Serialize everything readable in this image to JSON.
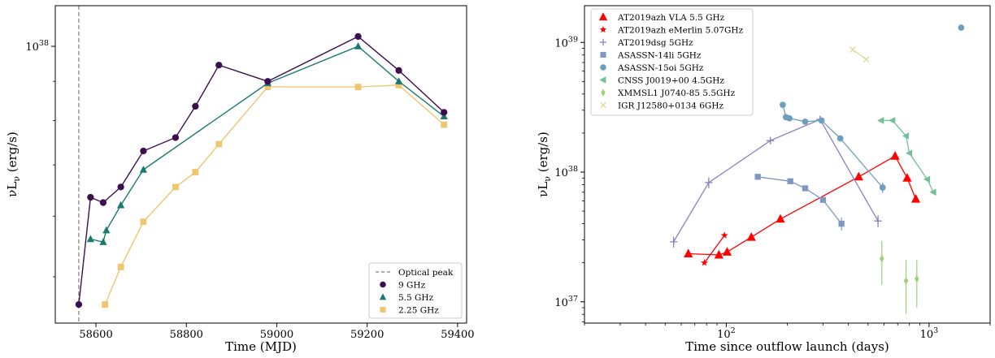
{
  "chart_data": [
    {
      "type": "line",
      "xlabel": "Time (MJD)",
      "ylabel": "νL<sub>ν</sub> (erg/s)",
      "ylabel_main": "νL",
      "ylabel_sub": "ν",
      "ylabel_unit": " (erg/s)",
      "xlim": [
        58510,
        59420
      ],
      "ylim": [
        4.35e+37,
        1.13e+38
      ],
      "yscale": "log",
      "xticks": [
        58600,
        58800,
        59000,
        59200,
        59400
      ],
      "yticks": [
        {
          "value": 1e+38,
          "label": "10",
          "exp": "38"
        }
      ],
      "legend_position": "lower right",
      "vline": {
        "x": 58562,
        "name": "Optical peak",
        "style": "dashed",
        "color": "#7f7f7f"
      },
      "series": [
        {
          "name": "9 GHz",
          "color": "#3b0f4f",
          "marker": "circle",
          "x": [
            58562,
            58588,
            58616,
            58655,
            58705,
            58776,
            58820,
            58872,
            58980,
            59180,
            59270,
            59370
          ],
          "y": [
            4.6e+37,
            6.35e+37,
            6.25e+37,
            6.55e+37,
            7.3e+37,
            7.6e+37,
            8.35e+37,
            9.45e+37,
            9e+37,
            1.03e+38,
            9.3e+37,
            8.2e+37
          ]
        },
        {
          "name": "5.5 GHz",
          "color": "#1b7a6e",
          "marker": "triangle",
          "x": [
            58588,
            58616,
            58623,
            58655,
            58705,
            58980,
            59180,
            59270,
            59370
          ],
          "y": [
            5.6e+37,
            5.55e+37,
            5.75e+37,
            6.2e+37,
            6.9e+37,
            8.95e+37,
            1e+38,
            9e+37,
            8.1e+37
          ],
          "line_x": [
            58588,
            58616,
            58623,
            58655,
            58705,
            58980,
            59180,
            59270,
            59370
          ]
        },
        {
          "name": "2.25 GHz",
          "color": "#efc56f",
          "marker": "square",
          "x": [
            58620,
            58655,
            58705,
            58776,
            58820,
            58872,
            58980,
            59180,
            59270,
            59370
          ],
          "y": [
            4.6e+37,
            5.15e+37,
            5.9e+37,
            6.55e+37,
            6.85e+37,
            7.45e+37,
            8.85e+37,
            8.85e+37,
            8.9e+37,
            7.9e+37
          ]
        }
      ]
    },
    {
      "type": "scatter",
      "xlabel": "Time since outflow launch (days)",
      "ylabel_main": "νL",
      "ylabel_sub": "ν",
      "ylabel_unit": " (erg/s)",
      "xscale": "log",
      "yscale": "log",
      "xlim": [
        20,
        2000
      ],
      "ylim": [
        6.85e+36,
        1.92e+39
      ],
      "xticks": [
        {
          "value": 100,
          "label": "10",
          "exp": "2"
        },
        {
          "value": 1000,
          "label": "10",
          "exp": "3"
        }
      ],
      "yticks": [
        {
          "value": 1e+37,
          "label": "10",
          "exp": "37"
        },
        {
          "value": 1e+38,
          "label": "10",
          "exp": "38"
        },
        {
          "value": 1e+39,
          "label": "10",
          "exp": "39"
        }
      ],
      "legend_position": "upper left",
      "series": [
        {
          "name": "AT2019azh VLA 5.5 GHz",
          "color": "#ff0000",
          "marker": "triangle",
          "line": true,
          "x": [
            65,
            92,
            101,
            133,
            185,
            450,
            680,
            780,
            860
          ],
          "y": [
            2.35e+37,
            2.3e+37,
            2.42e+37,
            3.15e+37,
            4.35e+37,
            9.2e+37,
            1.33e+38,
            9e+37,
            6.2e+37
          ]
        },
        {
          "name": "AT2019azh eMerlin 5.07GHz",
          "color": "#ff0000",
          "marker": "star",
          "line": true,
          "x": [
            78,
            98
          ],
          "y": [
            2e+37,
            3.25e+37
          ]
        },
        {
          "name": "AT2019dsg 5GHz",
          "color": "#8b7fc0",
          "marker": "plus",
          "line": true,
          "x": [
            55,
            82,
            165,
            290,
            560
          ],
          "y": [
            2.9e+37,
            8.3e+37,
            1.75e+38,
            2.55e+38,
            4.2e+37
          ],
          "yerr": [
            2.8e+36,
            8e+36,
            1e+37,
            1e+37,
            4.5e+36
          ]
        },
        {
          "name": "ASASSN-14li 5GHz",
          "color": "#7f97c3",
          "marker": "square",
          "line": true,
          "x": [
            143,
            207,
            245,
            300,
            370
          ],
          "y": [
            9.2e+37,
            8.5e+37,
            7.5e+37,
            6.1e+37,
            4e+37
          ],
          "yerr": [
            3e+36,
            3e+36,
            2e+36,
            2e+36,
            4.5e+36
          ]
        },
        {
          "name": "ASASSN-15oi 5GHz",
          "color": "#6a9fbf",
          "marker": "circle",
          "line": true,
          "x": [
            190,
            197,
            205,
            245,
            295,
            365,
            590
          ],
          "y": [
            3.3e+38,
            2.65e+38,
            2.6e+38,
            2.45e+38,
            2.5e+38,
            1.82e+38,
            7.6e+37
          ],
          "yerr": [
            0,
            0,
            0,
            0,
            0,
            0,
            7e+36
          ]
        },
        {
          "name": "ASASSN-15oi 5GHz late",
          "color": "#6a9fbf",
          "marker": "circle",
          "line": false,
          "x": [
            1440
          ],
          "y": [
            1.3e+39
          ]
        },
        {
          "name": "CNSS J0019+00 4.5GHz",
          "color": "#73bf96",
          "marker": "triangle-left",
          "line": true,
          "x": [
            580,
            660,
            770,
            800,
            980,
            1050
          ],
          "y": [
            2.5e+38,
            2.5e+38,
            1.9e+38,
            1.4e+38,
            8.8e+37,
            7e+37
          ]
        },
        {
          "name": "XMMSL1 J0740-85 5.5GHz",
          "color": "#9bd17a",
          "marker": "diamond",
          "line": false,
          "x": [
            585,
            770,
            870
          ],
          "y": [
            2.15e+37,
            1.45e+37,
            1.5e+37
          ],
          "yerr": [
            8e+36,
            6.5e+36,
            6e+36
          ]
        },
        {
          "name": "IGR J12580+0134 6GHz",
          "color": "#dcd89a",
          "marker": "x",
          "line": true,
          "x": [
            420,
            490
          ],
          "y": [
            8.8e+38,
            7.4e+38
          ]
        }
      ],
      "legend": [
        "AT2019azh VLA 5.5 GHz",
        "AT2019azh eMerlin 5.07GHz",
        "AT2019dsg 5GHz",
        "ASASSN-14li 5GHz",
        "ASASSN-15oi 5GHz",
        "CNSS J0019+00 4.5GHz",
        "XMMSL1 J0740-85 5.5GHz",
        "IGR J12580+0134 6GHz"
      ]
    }
  ]
}
